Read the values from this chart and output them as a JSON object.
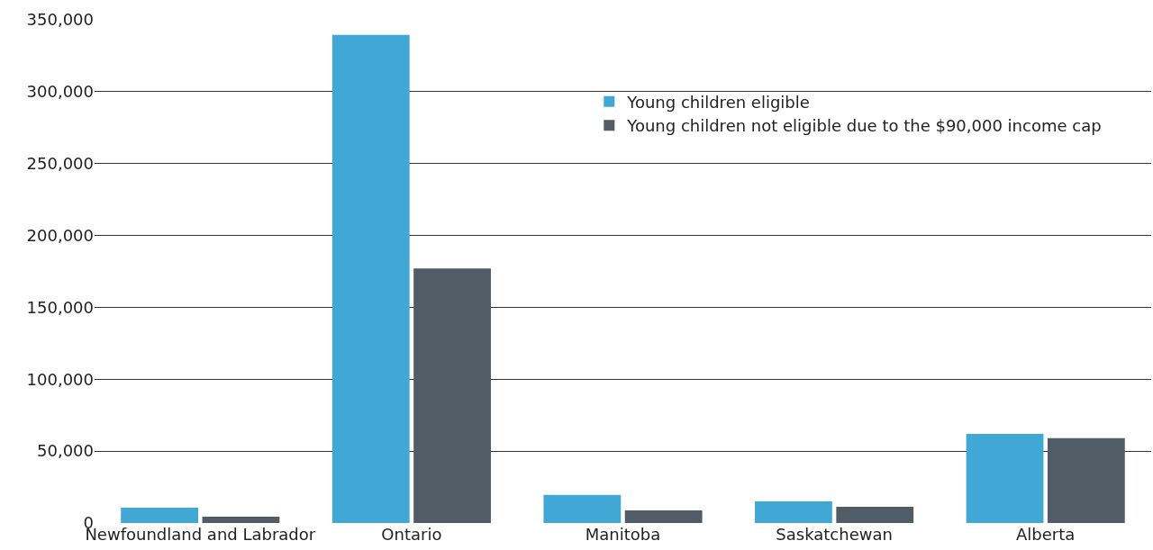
{
  "chart_data": {
    "type": "bar",
    "categories": [
      "Newfoundland and Labrador",
      "Ontario",
      "Manitoba",
      "Saskatchewan",
      "Alberta"
    ],
    "series": [
      {
        "name": "Young children eligible",
        "color": "#41a8d6",
        "values": [
          10700,
          339500,
          19500,
          15000,
          62000
        ]
      },
      {
        "name": "Young children not eligible due to the $90,000 income cap",
        "color": "#505d66",
        "values": [
          4400,
          177000,
          8800,
          11300,
          59000
        ]
      }
    ],
    "ylim": [
      0,
      350000
    ],
    "yticks": [
      {
        "value": 0,
        "label": "0"
      },
      {
        "value": 50000,
        "label": "50,000"
      },
      {
        "value": 100000,
        "label": "100,000"
      },
      {
        "value": 150000,
        "label": "150,000"
      },
      {
        "value": 200000,
        "label": "200,000"
      },
      {
        "value": 250000,
        "label": "250,000"
      },
      {
        "value": 300000,
        "label": "300,000"
      },
      {
        "value": 350000,
        "label": "350,000"
      }
    ],
    "grid": "y",
    "legend": "top right"
  }
}
